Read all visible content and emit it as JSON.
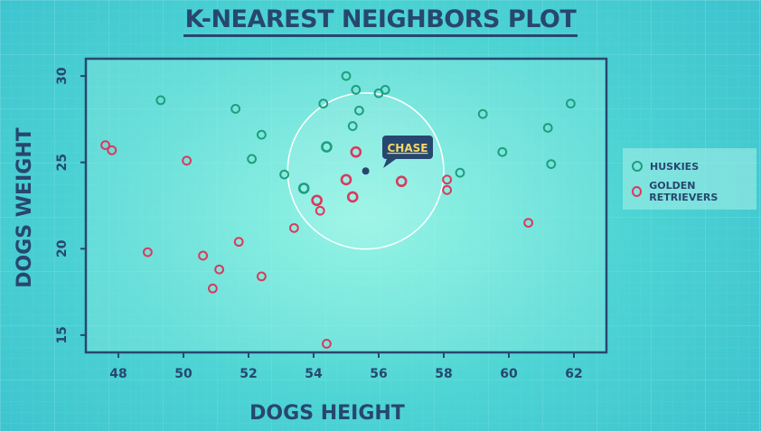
{
  "chart_data": {
    "type": "scatter",
    "title": "K-NEAREST NEIGHBORS PLOT",
    "xlabel": "DOGS HEIGHT",
    "ylabel": "DOGS WEIGHT",
    "xlim": [
      47,
      63
    ],
    "ylim": [
      14,
      31
    ],
    "xticks": [
      48,
      50,
      52,
      54,
      56,
      58,
      60,
      62
    ],
    "yticks": [
      15,
      20,
      25,
      30
    ],
    "legend_position": "right",
    "series": [
      {
        "name": "HUSKIES",
        "color": "#1e9e7e",
        "points": [
          [
            49.3,
            28.6
          ],
          [
            51.6,
            28.1
          ],
          [
            52.1,
            25.2
          ],
          [
            52.4,
            26.6
          ],
          [
            53.1,
            24.3
          ],
          [
            53.7,
            23.5
          ],
          [
            54.3,
            28.4
          ],
          [
            54.4,
            25.9
          ],
          [
            55.0,
            30.0
          ],
          [
            55.2,
            27.1
          ],
          [
            55.3,
            29.2
          ],
          [
            55.4,
            28.0
          ],
          [
            56.0,
            29.0
          ],
          [
            56.2,
            29.2
          ],
          [
            58.5,
            24.4
          ],
          [
            59.2,
            27.8
          ],
          [
            59.8,
            25.6
          ],
          [
            61.2,
            27.0
          ],
          [
            61.3,
            24.9
          ],
          [
            61.9,
            28.4
          ]
        ]
      },
      {
        "name": "GOLDEN RETRIEVERS",
        "color": "#d93a5c",
        "points": [
          [
            47.6,
            26.0
          ],
          [
            47.8,
            25.7
          ],
          [
            48.9,
            19.8
          ],
          [
            50.1,
            25.1
          ],
          [
            50.6,
            19.6
          ],
          [
            50.9,
            17.7
          ],
          [
            51.1,
            18.8
          ],
          [
            51.7,
            20.4
          ],
          [
            52.4,
            18.4
          ],
          [
            53.4,
            21.2
          ],
          [
            54.1,
            22.8
          ],
          [
            54.2,
            22.2
          ],
          [
            54.4,
            14.5
          ],
          [
            55.0,
            24.0
          ],
          [
            55.2,
            23.0
          ],
          [
            55.3,
            25.6
          ],
          [
            56.7,
            23.9
          ],
          [
            58.1,
            24.0
          ],
          [
            58.1,
            23.4
          ],
          [
            60.6,
            21.5
          ]
        ]
      }
    ],
    "highlight": {
      "label": "CHASE",
      "x": 55.6,
      "y": 24.5,
      "radius": 2.4,
      "color": "#27476f",
      "label_color": "#f5d66a"
    }
  }
}
